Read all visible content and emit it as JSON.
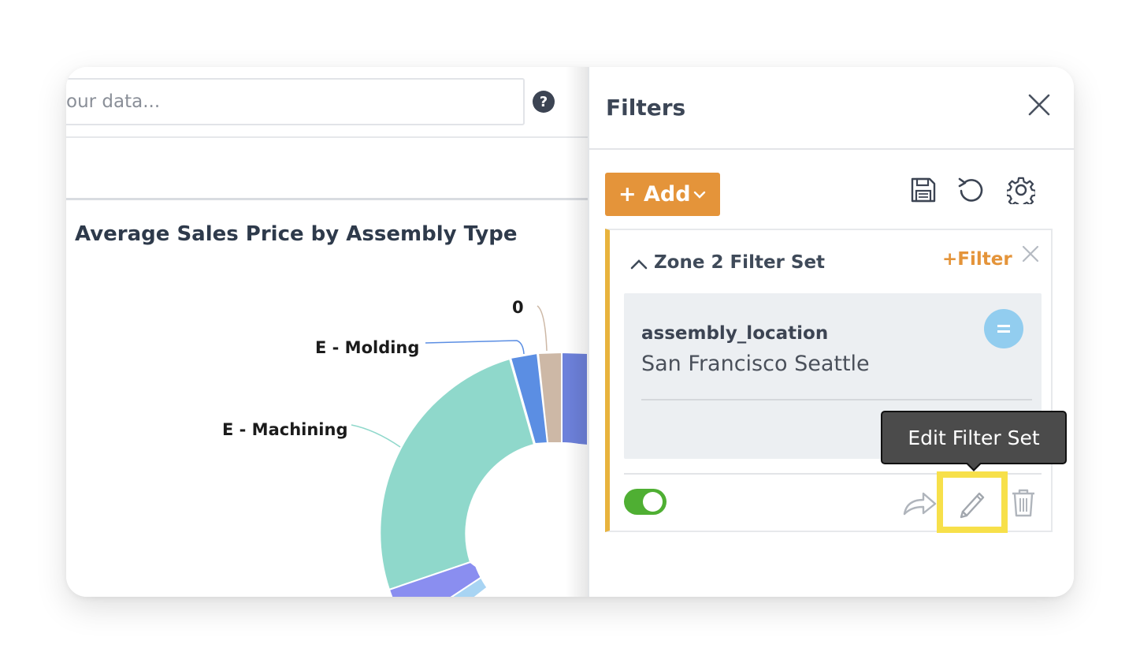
{
  "search": {
    "placeholder_visible": "our data..."
  },
  "chart_card": {
    "title": "Average Sales Price by Assembly Type"
  },
  "chart_data": {
    "type": "pie",
    "labels": [
      "0",
      "E - Molding",
      "E - Machining"
    ],
    "colors": {
      "tan": "#cdb8a6",
      "blue": "#5b8ee3",
      "teal": "#8fd8cb",
      "periwinkle": "#8a8ef0",
      "indigo": "#6d81db",
      "lightblue": "#a8d4f3"
    }
  },
  "filters_panel": {
    "title": "Filters",
    "add_label": "+ Add",
    "filter_set": {
      "title": "Zone 2 Filter Set",
      "add_filter_label": "+Filter",
      "filter": {
        "field": "assembly_location",
        "values": "San Francisco Seattle",
        "operator": "="
      },
      "enabled": true,
      "tooltip": "Edit Filter Set"
    }
  },
  "icons": [
    "help-icon",
    "close-icon",
    "save-icon",
    "reset-icon",
    "settings-icon",
    "chevron-up-icon",
    "chevron-down-icon",
    "share-icon",
    "pencil-icon",
    "trash-icon"
  ],
  "accent_colors": {
    "orange": "#e4943a",
    "yellow_border": "#e8b33d",
    "highlight": "#f7e04a",
    "toggle_on": "#4faf33"
  }
}
